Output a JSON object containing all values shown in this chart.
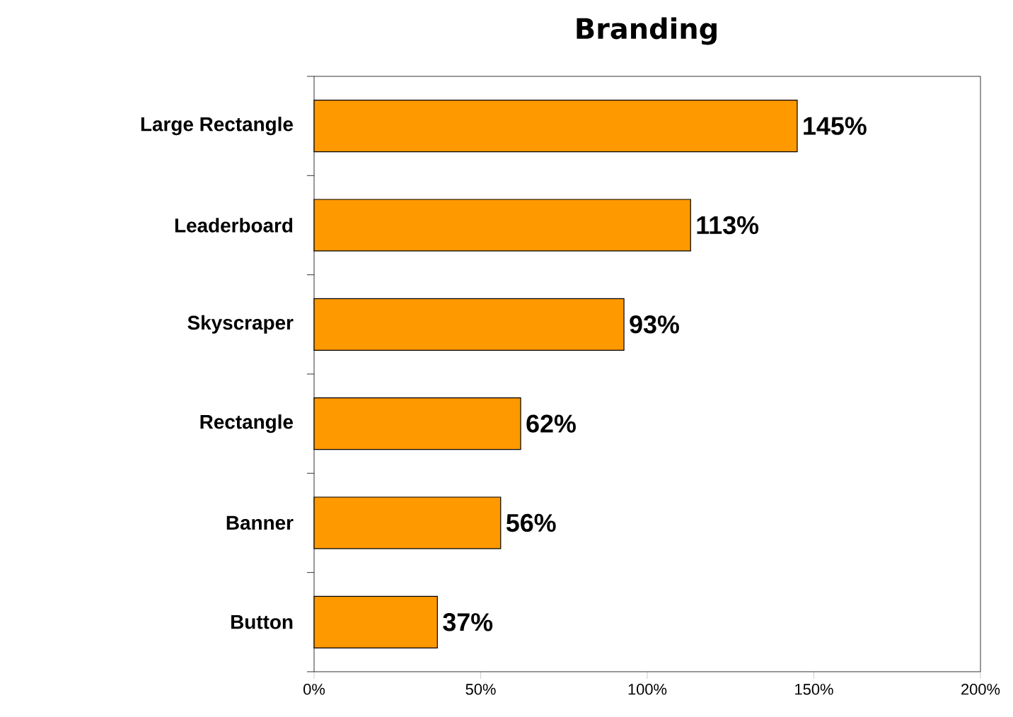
{
  "chart_data": {
    "type": "bar",
    "orientation": "horizontal",
    "title": "Branding",
    "categories": [
      "Large Rectangle",
      "Leaderboard",
      "Skyscraper",
      "Rectangle",
      "Banner",
      "Button"
    ],
    "values": [
      145,
      113,
      93,
      62,
      56,
      37
    ],
    "value_labels": [
      "145%",
      "113%",
      "93%",
      "62%",
      "56%",
      "37%"
    ],
    "color": "#ff9900",
    "xlim": [
      0,
      200
    ],
    "xticks": [
      {
        "value": 0,
        "label": "0%"
      },
      {
        "value": 50,
        "label": "50%"
      },
      {
        "value": 100,
        "label": "100%"
      },
      {
        "value": 150,
        "label": "150%"
      },
      {
        "value": 200,
        "label": "200%"
      }
    ]
  }
}
